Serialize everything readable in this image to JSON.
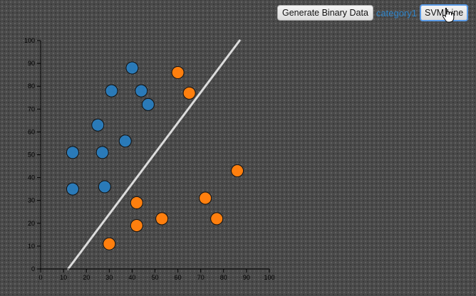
{
  "toolbar": {
    "generate_label": "Generate Binary Data",
    "category_label": "category1",
    "svm_label": "SVM Line"
  },
  "colors": {
    "category1": "#2a7ab8",
    "category2": "#ff7f0e",
    "svm_line": "#dcdcdc",
    "axis": "#000000"
  },
  "chart_data": {
    "type": "scatter",
    "title": "",
    "xlabel": "",
    "ylabel": "",
    "xlim": [
      0,
      100
    ],
    "ylim": [
      0,
      100
    ],
    "x_ticks": [
      "0",
      "10",
      "20",
      "30",
      "40",
      "50",
      "60",
      "70",
      "80",
      "90",
      "100"
    ],
    "y_ticks": [
      "0",
      "10",
      "20",
      "30",
      "40",
      "50",
      "60",
      "70",
      "80",
      "90",
      "100"
    ],
    "grid": false,
    "series": [
      {
        "color": "#2a7ab8",
        "points": [
          {
            "x": 40,
            "y": 88
          },
          {
            "x": 31,
            "y": 78
          },
          {
            "x": 44,
            "y": 78
          },
          {
            "x": 47,
            "y": 72
          },
          {
            "x": 25,
            "y": 63
          },
          {
            "x": 37,
            "y": 56
          },
          {
            "x": 14,
            "y": 51
          },
          {
            "x": 27,
            "y": 51
          },
          {
            "x": 14,
            "y": 35
          },
          {
            "x": 28,
            "y": 36
          }
        ]
      },
      {
        "color": "#ff7f0e",
        "points": [
          {
            "x": 60,
            "y": 86
          },
          {
            "x": 65,
            "y": 77
          },
          {
            "x": 86,
            "y": 43
          },
          {
            "x": 72,
            "y": 31
          },
          {
            "x": 42,
            "y": 29
          },
          {
            "x": 77,
            "y": 22
          },
          {
            "x": 53,
            "y": 22
          },
          {
            "x": 42,
            "y": 19
          },
          {
            "x": 30,
            "y": 11
          }
        ]
      }
    ],
    "svm_line": {
      "x1": 12,
      "y1": 0,
      "x2": 87,
      "y2": 100
    }
  }
}
